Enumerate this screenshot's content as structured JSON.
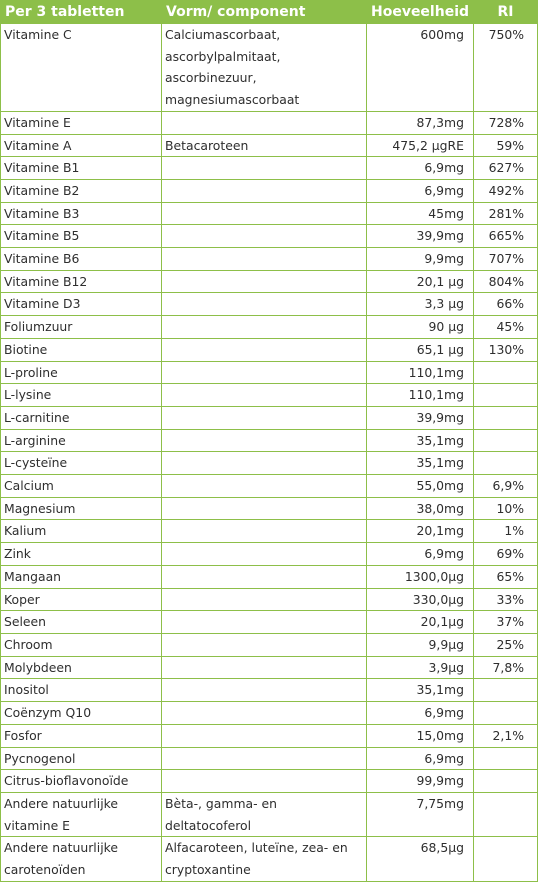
{
  "headers": [
    "Per 3 tabletten",
    "Vorm/ component",
    "Hoeveelheid",
    "RI"
  ],
  "rows": [
    {
      "name": "Vitamine C",
      "form": "Calciumascorbaat, ascorbylpalmitaat, ascorbinezuur, magnesiumascorbaat",
      "amount": "600mg",
      "ri": "750%"
    },
    {
      "name": "Vitamine E",
      "form": "",
      "amount": "87,3mg",
      "ri": "728%"
    },
    {
      "name": "Vitamine A",
      "form": "Betacaroteen",
      "amount": "475,2 µgRE",
      "ri": "59%"
    },
    {
      "name": "Vitamine B1",
      "form": "",
      "amount": "6,9mg",
      "ri": "627%"
    },
    {
      "name": "Vitamine B2",
      "form": "",
      "amount": "6,9mg",
      "ri": "492%"
    },
    {
      "name": "Vitamine B3",
      "form": "",
      "amount": "45mg",
      "ri": "281%"
    },
    {
      "name": "Vitamine B5",
      "form": "",
      "amount": "39,9mg",
      "ri": "665%"
    },
    {
      "name": "Vitamine B6",
      "form": "",
      "amount": "9,9mg",
      "ri": "707%"
    },
    {
      "name": "Vitamine B12",
      "form": "",
      "amount": "20,1 µg",
      "ri": "804%"
    },
    {
      "name": "Vitamine D3",
      "form": "",
      "amount": "3,3 µg",
      "ri": "66%"
    },
    {
      "name": "Foliumzuur",
      "form": "",
      "amount": "90 µg",
      "ri": "45%"
    },
    {
      "name": "Biotine",
      "form": "",
      "amount": "65,1 µg",
      "ri": "130%"
    },
    {
      "name": "L-proline",
      "form": "",
      "amount": "110,1mg",
      "ri": ""
    },
    {
      "name": "L-lysine",
      "form": "",
      "amount": "110,1mg",
      "ri": ""
    },
    {
      "name": "L-carnitine",
      "form": "",
      "amount": "39,9mg",
      "ri": ""
    },
    {
      "name": "L-arginine",
      "form": "",
      "amount": "35,1mg",
      "ri": ""
    },
    {
      "name": "L-cysteïne",
      "form": "",
      "amount": "35,1mg",
      "ri": ""
    },
    {
      "name": "Calcium",
      "form": "",
      "amount": "55,0mg",
      "ri": "6,9%"
    },
    {
      "name": "Magnesium",
      "form": "",
      "amount": "38,0mg",
      "ri": "10%"
    },
    {
      "name": "Kalium",
      "form": "",
      "amount": "20,1mg",
      "ri": "1%"
    },
    {
      "name": "Zink",
      "form": "",
      "amount": "6,9mg",
      "ri": "69%"
    },
    {
      "name": "Mangaan",
      "form": "",
      "amount": "1300,0µg",
      "ri": "65%"
    },
    {
      "name": "Koper",
      "form": "",
      "amount": "330,0µg",
      "ri": "33%"
    },
    {
      "name": "Seleen",
      "form": "",
      "amount": "20,1µg",
      "ri": "37%"
    },
    {
      "name": "Chroom",
      "form": "",
      "amount": "9,9µg",
      "ri": "25%"
    },
    {
      "name": "Molybdeen",
      "form": "",
      "amount": "3,9µg",
      "ri": "7,8%"
    },
    {
      "name": "Inositol",
      "form": "",
      "amount": "35,1mg",
      "ri": ""
    },
    {
      "name": "Coënzym Q10",
      "form": "",
      "amount": "6,9mg",
      "ri": ""
    },
    {
      "name": "Fosfor",
      "form": "",
      "amount": "15,0mg",
      "ri": "2,1%"
    },
    {
      "name": "Pycnogenol",
      "form": "",
      "amount": "6,9mg",
      "ri": ""
    },
    {
      "name": "Citrus-bioflavonoïde",
      "form": "",
      "amount": "99,9mg",
      "ri": ""
    },
    {
      "name": "Andere natuurlijke vitamine E",
      "form": "Bèta-, gamma- en deltatocoferol",
      "amount": "7,75mg",
      "ri": ""
    },
    {
      "name": "Andere natuurlijke carotenoïden",
      "form": "Alfacaroteen, luteïne, zea- en cryptoxantine",
      "amount": "68,5µg",
      "ri": ""
    }
  ]
}
